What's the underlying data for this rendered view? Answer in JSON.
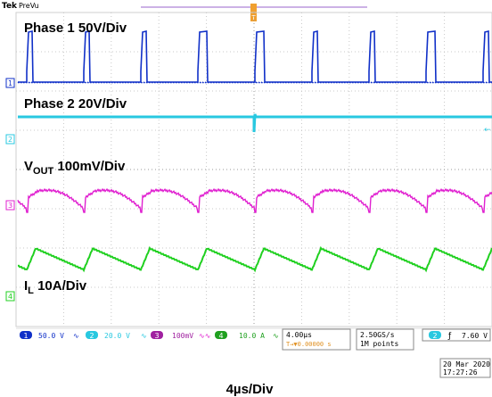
{
  "header": {
    "brand": "Tek",
    "mode": "PreVu"
  },
  "trigger": {
    "marker_label": "T"
  },
  "channels": [
    {
      "id": "1",
      "label": "Phase 1 50V/Div",
      "color": "#1030c8",
      "scale": "50.0 V",
      "coupling": "∿"
    },
    {
      "id": "2",
      "label": "Phase 2 20V/Div",
      "color": "#28c8e0",
      "scale": "20.0 V",
      "coupling": "∿"
    },
    {
      "id": "3",
      "label_main": "V",
      "label_sub": "OUT",
      "label_rest": " 100mV/Div",
      "color": "#e020d0",
      "scale": "100mV",
      "coupling": "∿∿"
    },
    {
      "id": "4",
      "label_main": "I",
      "label_sub": "L",
      "label_rest": " 10A/Div",
      "color": "#20d020",
      "scale": "10.0 A",
      "coupling": "∿"
    }
  ],
  "timebase": {
    "scale": "4.00µs",
    "delay": "T→▼0.00000 s"
  },
  "acquisition": {
    "rate": "2.50GS/s",
    "points": "1M points"
  },
  "trigger_info": {
    "channel": "2",
    "slope": "ƒ",
    "level": "7.60 V"
  },
  "datetime": {
    "date": "20 Mar 2020",
    "time": "17:27:26"
  },
  "caption": "4µs/Div"
}
